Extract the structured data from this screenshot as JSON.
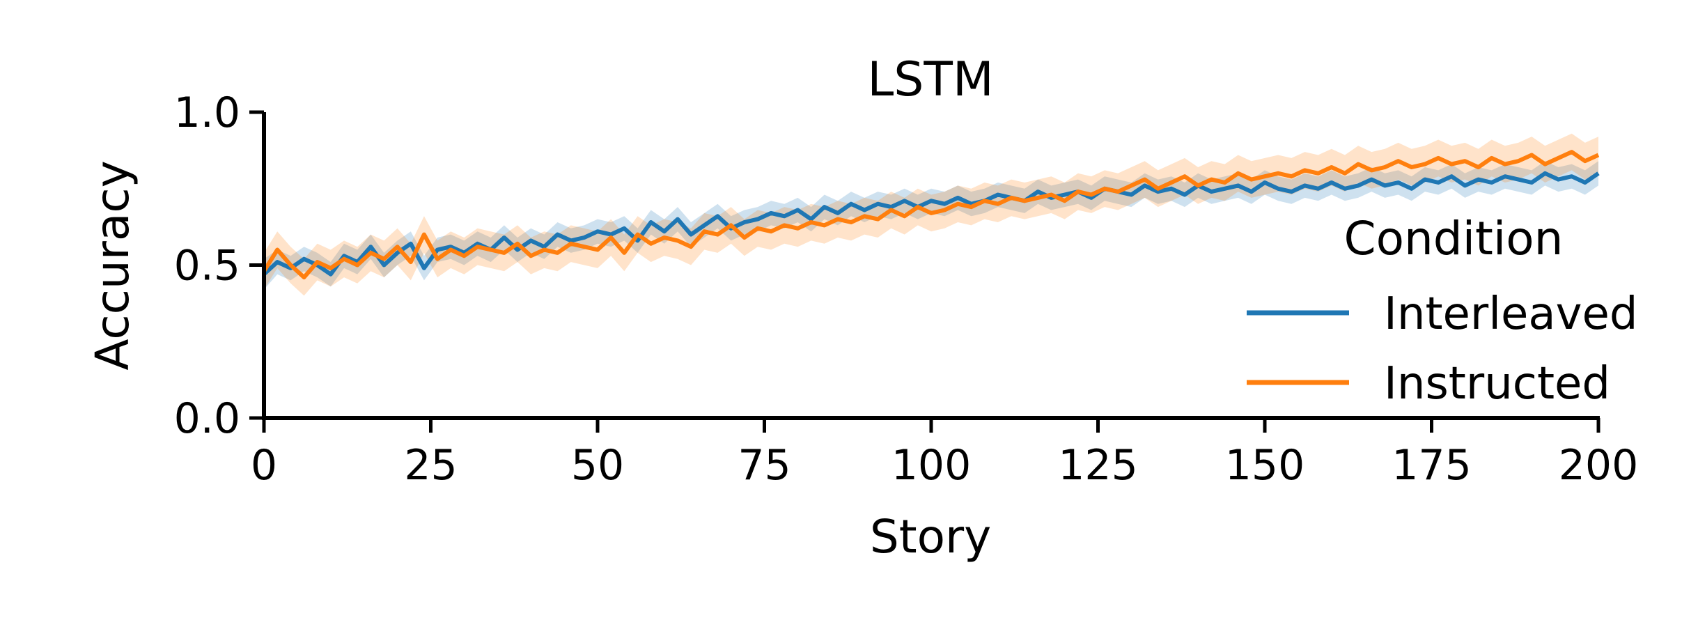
{
  "chart_data": {
    "type": "line",
    "title": "LSTM",
    "xlabel": "Story",
    "ylabel": "Accuracy",
    "xlim": [
      0,
      200
    ],
    "ylim": [
      0,
      1
    ],
    "xticks": [
      0,
      25,
      50,
      75,
      100,
      125,
      150,
      175,
      200
    ],
    "yticks": [
      0.0,
      0.5,
      1.0
    ],
    "xtick_labels": [
      "0",
      "25",
      "50",
      "75",
      "100",
      "125",
      "150",
      "175",
      "200"
    ],
    "ytick_labels": [
      "0.0",
      "0.5",
      "1.0"
    ],
    "grid": false,
    "legend": {
      "title": "Condition",
      "position": "right",
      "entries": [
        "Interleaved",
        "Instructed"
      ]
    },
    "x": [
      0,
      2,
      4,
      6,
      8,
      10,
      12,
      14,
      16,
      18,
      20,
      22,
      24,
      26,
      28,
      30,
      32,
      34,
      36,
      38,
      40,
      42,
      44,
      46,
      48,
      50,
      52,
      54,
      56,
      58,
      60,
      62,
      64,
      66,
      68,
      70,
      72,
      74,
      76,
      78,
      80,
      82,
      84,
      86,
      88,
      90,
      92,
      94,
      96,
      98,
      100,
      102,
      104,
      106,
      108,
      110,
      112,
      114,
      116,
      118,
      120,
      122,
      124,
      126,
      128,
      130,
      132,
      134,
      136,
      138,
      140,
      142,
      144,
      146,
      148,
      150,
      152,
      154,
      156,
      158,
      160,
      162,
      164,
      166,
      168,
      170,
      172,
      174,
      176,
      178,
      180,
      182,
      184,
      186,
      188,
      190,
      192,
      194,
      196,
      198,
      200
    ],
    "series": [
      {
        "name": "Interleaved",
        "color": "#1f77b4",
        "values": [
          0.47,
          0.51,
          0.49,
          0.52,
          0.5,
          0.47,
          0.53,
          0.51,
          0.56,
          0.5,
          0.54,
          0.57,
          0.49,
          0.55,
          0.56,
          0.54,
          0.57,
          0.55,
          0.59,
          0.55,
          0.58,
          0.56,
          0.6,
          0.58,
          0.59,
          0.61,
          0.6,
          0.62,
          0.58,
          0.64,
          0.61,
          0.65,
          0.6,
          0.63,
          0.66,
          0.62,
          0.64,
          0.65,
          0.67,
          0.66,
          0.68,
          0.65,
          0.69,
          0.67,
          0.7,
          0.68,
          0.7,
          0.69,
          0.71,
          0.69,
          0.71,
          0.7,
          0.72,
          0.7,
          0.71,
          0.73,
          0.72,
          0.71,
          0.74,
          0.72,
          0.73,
          0.74,
          0.72,
          0.75,
          0.74,
          0.73,
          0.76,
          0.74,
          0.75,
          0.73,
          0.76,
          0.74,
          0.75,
          0.76,
          0.74,
          0.77,
          0.75,
          0.74,
          0.76,
          0.75,
          0.77,
          0.75,
          0.76,
          0.78,
          0.76,
          0.77,
          0.75,
          0.78,
          0.77,
          0.79,
          0.76,
          0.78,
          0.77,
          0.79,
          0.78,
          0.77,
          0.8,
          0.78,
          0.79,
          0.77,
          0.8
        ],
        "ci_lower": [
          0.42,
          0.47,
          0.45,
          0.48,
          0.46,
          0.43,
          0.49,
          0.47,
          0.52,
          0.46,
          0.5,
          0.53,
          0.45,
          0.51,
          0.52,
          0.5,
          0.53,
          0.51,
          0.55,
          0.51,
          0.54,
          0.52,
          0.56,
          0.54,
          0.55,
          0.57,
          0.56,
          0.58,
          0.54,
          0.6,
          0.57,
          0.61,
          0.56,
          0.59,
          0.62,
          0.58,
          0.6,
          0.61,
          0.63,
          0.62,
          0.64,
          0.61,
          0.65,
          0.63,
          0.66,
          0.64,
          0.66,
          0.65,
          0.67,
          0.65,
          0.67,
          0.66,
          0.68,
          0.66,
          0.67,
          0.69,
          0.68,
          0.67,
          0.7,
          0.68,
          0.69,
          0.7,
          0.68,
          0.71,
          0.7,
          0.69,
          0.72,
          0.7,
          0.71,
          0.69,
          0.72,
          0.7,
          0.71,
          0.72,
          0.7,
          0.73,
          0.71,
          0.7,
          0.72,
          0.71,
          0.73,
          0.71,
          0.72,
          0.74,
          0.72,
          0.73,
          0.71,
          0.74,
          0.73,
          0.75,
          0.72,
          0.74,
          0.73,
          0.75,
          0.74,
          0.73,
          0.76,
          0.74,
          0.75,
          0.73,
          0.76
        ],
        "ci_upper": [
          0.52,
          0.55,
          0.53,
          0.56,
          0.54,
          0.51,
          0.57,
          0.55,
          0.6,
          0.54,
          0.58,
          0.61,
          0.53,
          0.59,
          0.6,
          0.58,
          0.61,
          0.59,
          0.63,
          0.59,
          0.62,
          0.6,
          0.64,
          0.62,
          0.63,
          0.65,
          0.64,
          0.66,
          0.62,
          0.68,
          0.65,
          0.69,
          0.64,
          0.67,
          0.7,
          0.66,
          0.68,
          0.69,
          0.71,
          0.7,
          0.72,
          0.69,
          0.73,
          0.71,
          0.74,
          0.72,
          0.74,
          0.73,
          0.75,
          0.73,
          0.75,
          0.74,
          0.76,
          0.74,
          0.75,
          0.77,
          0.76,
          0.75,
          0.78,
          0.76,
          0.77,
          0.78,
          0.76,
          0.79,
          0.78,
          0.77,
          0.8,
          0.78,
          0.79,
          0.77,
          0.8,
          0.78,
          0.79,
          0.8,
          0.78,
          0.81,
          0.79,
          0.78,
          0.8,
          0.79,
          0.81,
          0.79,
          0.8,
          0.82,
          0.8,
          0.81,
          0.79,
          0.82,
          0.81,
          0.83,
          0.8,
          0.82,
          0.81,
          0.83,
          0.82,
          0.81,
          0.84,
          0.82,
          0.83,
          0.81,
          0.84
        ]
      },
      {
        "name": "Instructed",
        "color": "#ff7f0e",
        "values": [
          0.48,
          0.55,
          0.5,
          0.46,
          0.51,
          0.49,
          0.52,
          0.5,
          0.54,
          0.52,
          0.56,
          0.51,
          0.6,
          0.52,
          0.55,
          0.53,
          0.56,
          0.55,
          0.54,
          0.57,
          0.53,
          0.55,
          0.54,
          0.57,
          0.56,
          0.55,
          0.59,
          0.54,
          0.6,
          0.57,
          0.59,
          0.58,
          0.56,
          0.61,
          0.6,
          0.63,
          0.59,
          0.62,
          0.61,
          0.63,
          0.62,
          0.64,
          0.63,
          0.65,
          0.64,
          0.66,
          0.65,
          0.68,
          0.66,
          0.69,
          0.67,
          0.68,
          0.7,
          0.69,
          0.71,
          0.7,
          0.72,
          0.71,
          0.72,
          0.73,
          0.71,
          0.74,
          0.73,
          0.75,
          0.74,
          0.76,
          0.78,
          0.75,
          0.77,
          0.79,
          0.76,
          0.78,
          0.77,
          0.8,
          0.78,
          0.79,
          0.8,
          0.79,
          0.81,
          0.8,
          0.82,
          0.8,
          0.83,
          0.81,
          0.82,
          0.84,
          0.82,
          0.83,
          0.85,
          0.83,
          0.84,
          0.82,
          0.85,
          0.83,
          0.84,
          0.86,
          0.83,
          0.85,
          0.87,
          0.84,
          0.86
        ],
        "ci_lower": [
          0.42,
          0.49,
          0.44,
          0.4,
          0.45,
          0.43,
          0.46,
          0.44,
          0.48,
          0.46,
          0.5,
          0.45,
          0.54,
          0.46,
          0.49,
          0.47,
          0.5,
          0.49,
          0.48,
          0.51,
          0.47,
          0.49,
          0.48,
          0.51,
          0.5,
          0.49,
          0.53,
          0.48,
          0.54,
          0.51,
          0.53,
          0.52,
          0.5,
          0.55,
          0.54,
          0.57,
          0.53,
          0.56,
          0.55,
          0.57,
          0.56,
          0.58,
          0.57,
          0.59,
          0.58,
          0.6,
          0.59,
          0.62,
          0.6,
          0.63,
          0.61,
          0.62,
          0.64,
          0.63,
          0.65,
          0.64,
          0.66,
          0.65,
          0.66,
          0.67,
          0.65,
          0.68,
          0.67,
          0.69,
          0.68,
          0.7,
          0.72,
          0.69,
          0.71,
          0.73,
          0.7,
          0.72,
          0.71,
          0.74,
          0.72,
          0.73,
          0.74,
          0.73,
          0.75,
          0.74,
          0.76,
          0.74,
          0.77,
          0.75,
          0.76,
          0.78,
          0.76,
          0.77,
          0.79,
          0.77,
          0.78,
          0.76,
          0.79,
          0.77,
          0.78,
          0.8,
          0.77,
          0.79,
          0.81,
          0.78,
          0.8
        ],
        "ci_upper": [
          0.54,
          0.61,
          0.56,
          0.52,
          0.57,
          0.55,
          0.58,
          0.56,
          0.6,
          0.58,
          0.62,
          0.57,
          0.66,
          0.58,
          0.61,
          0.59,
          0.62,
          0.61,
          0.6,
          0.63,
          0.59,
          0.61,
          0.6,
          0.63,
          0.62,
          0.61,
          0.65,
          0.6,
          0.66,
          0.63,
          0.65,
          0.64,
          0.62,
          0.67,
          0.66,
          0.69,
          0.65,
          0.68,
          0.67,
          0.69,
          0.68,
          0.7,
          0.69,
          0.71,
          0.7,
          0.72,
          0.71,
          0.74,
          0.72,
          0.75,
          0.73,
          0.74,
          0.76,
          0.75,
          0.77,
          0.76,
          0.78,
          0.77,
          0.78,
          0.79,
          0.77,
          0.8,
          0.79,
          0.81,
          0.8,
          0.82,
          0.84,
          0.81,
          0.83,
          0.85,
          0.82,
          0.84,
          0.83,
          0.86,
          0.84,
          0.85,
          0.86,
          0.85,
          0.87,
          0.86,
          0.88,
          0.86,
          0.89,
          0.87,
          0.88,
          0.9,
          0.88,
          0.89,
          0.91,
          0.89,
          0.9,
          0.88,
          0.91,
          0.89,
          0.9,
          0.92,
          0.89,
          0.91,
          0.93,
          0.9,
          0.92
        ]
      }
    ]
  }
}
